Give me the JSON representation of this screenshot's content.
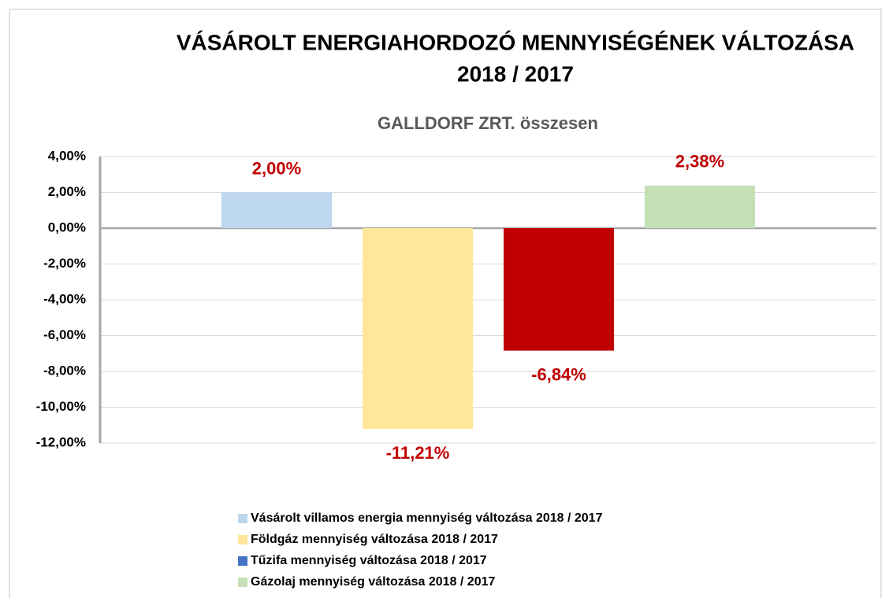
{
  "chart_data": {
    "type": "bar",
    "title": [
      "VÁSÁROLT ENERGIAHORDOZÓ MENNYISÉGÉNEK VÁLTOZÁSA",
      "2018  / 2017"
    ],
    "subtitle": "GALLDORF ZRT. összesen",
    "series": [
      {
        "name": "Vásárolt villamos energia mennyiség változása 2018  / 2017",
        "color": "#bdd7ee",
        "legend_color": "#bdd7ee",
        "values": [
          2.0
        ],
        "value_labels": [
          "2,00%"
        ]
      },
      {
        "name": "Földgáz mennyiség változása 2018  / 2017",
        "color": "#ffe699",
        "legend_color": "#ffe699",
        "values": [
          -11.21
        ],
        "value_labels": [
          "-11,21%"
        ]
      },
      {
        "name": "Tűzifa mennyiség változása 2018  / 2017",
        "color": "#c00000",
        "legend_color": "#4472c4",
        "values": [
          -6.84
        ],
        "value_labels": [
          "-6,84%"
        ]
      },
      {
        "name": "Gázolaj mennyiség változása 2018  / 2017",
        "color": "#c5e0b4",
        "legend_color": "#c5e0b4",
        "values": [
          2.38
        ],
        "value_labels": [
          "2,38%"
        ]
      }
    ],
    "ylim": [
      -12,
      4
    ],
    "yticks": [
      {
        "value": 4,
        "label": "4,00%"
      },
      {
        "value": 2,
        "label": "2,00%"
      },
      {
        "value": 0,
        "label": "0,00%"
      },
      {
        "value": -2,
        "label": "-2,00%"
      },
      {
        "value": -4,
        "label": "-4,00%"
      },
      {
        "value": -6,
        "label": "-6,00%"
      },
      {
        "value": -8,
        "label": "-8,00%"
      },
      {
        "value": -10,
        "label": "-10,00%"
      },
      {
        "value": -12,
        "label": "-12,00%"
      }
    ],
    "grid": true,
    "value_label_color": "#c00000"
  }
}
